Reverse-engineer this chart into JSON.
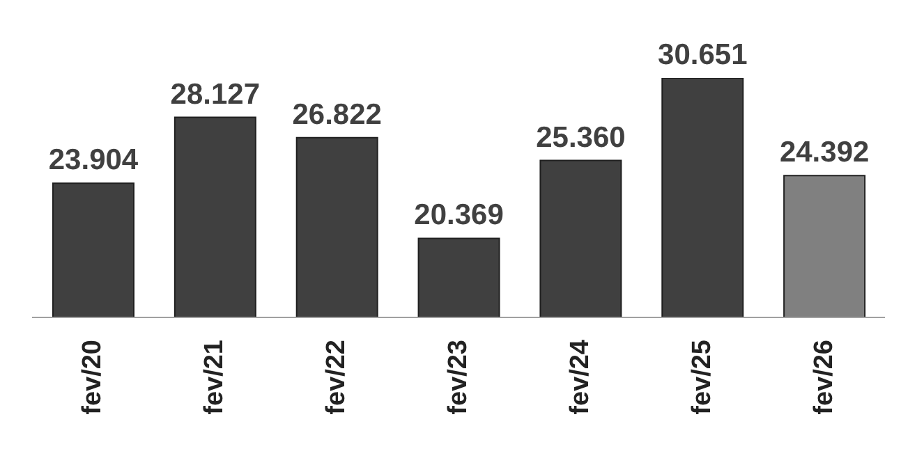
{
  "chart_data": {
    "type": "bar",
    "categories": [
      "fev/20",
      "fev/21",
      "fev/22",
      "fev/23",
      "fev/24",
      "fev/25",
      "fev/26"
    ],
    "values": [
      23904,
      28127,
      26822,
      20369,
      25360,
      30651,
      24392
    ],
    "value_labels": [
      "23.904",
      "28.127",
      "26.822",
      "20.369",
      "25.360",
      "30.651",
      "24.392"
    ],
    "colors": [
      "#404040",
      "#404040",
      "#404040",
      "#404040",
      "#404040",
      "#404040",
      "#808080"
    ],
    "ylim": [
      15300,
      30651
    ],
    "grid": false,
    "legend": false
  }
}
